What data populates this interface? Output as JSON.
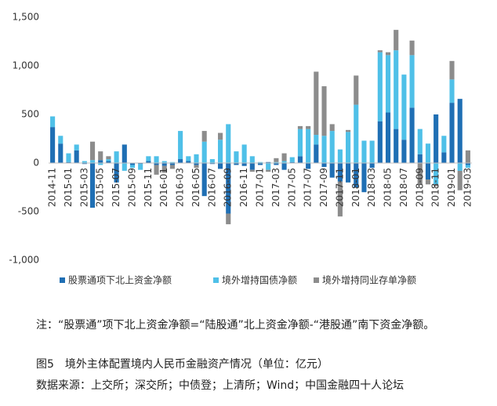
{
  "chart_data": {
    "type": "stacked_bar",
    "categories": [
      "2014-11",
      null,
      "2015-01",
      null,
      "2015-03",
      null,
      "2015-05",
      null,
      "2015-07",
      null,
      "2015-09",
      null,
      "2015-11",
      null,
      "2016-01",
      null,
      "2016-03",
      null,
      "2016-05",
      null,
      "2016-07",
      null,
      "2016-09",
      null,
      "2016-11",
      null,
      "2017-01",
      null,
      "2017-03",
      null,
      "2017-05",
      null,
      "2017-07",
      null,
      "2017-09",
      null,
      "2017-11",
      null,
      "2018-01",
      null,
      "2018-03",
      null,
      "2018-05",
      null,
      "2018-07",
      null,
      "2018-09",
      null,
      "2018-11",
      null,
      "2019-01",
      null,
      "2019-03"
    ],
    "series": [
      {
        "name": "股票通项下北上资金净额",
        "color": "#1f6fb4",
        "values": [
          370,
          200,
          10,
          130,
          -10,
          -460,
          30,
          20,
          -200,
          190,
          -20,
          -10,
          20,
          -20,
          -30,
          -20,
          40,
          20,
          -20,
          -340,
          -10,
          -60,
          -520,
          -20,
          -30,
          -70,
          -20,
          10,
          -20,
          -70,
          10,
          70,
          -60,
          190,
          -40,
          -150,
          -190,
          -200,
          -250,
          -300,
          -50,
          430,
          520,
          350,
          240,
          570,
          90,
          -170,
          500,
          110,
          620,
          660,
          -20
        ]
      },
      {
        "name": "境外增持国债净额",
        "color": "#4fc0e8",
        "values": [
          110,
          80,
          90,
          60,
          20,
          30,
          -20,
          20,
          120,
          -80,
          -30,
          -60,
          50,
          70,
          20,
          10,
          290,
          50,
          90,
          220,
          40,
          240,
          400,
          120,
          190,
          70,
          10,
          -70,
          10,
          20,
          50,
          280,
          350,
          100,
          280,
          330,
          140,
          320,
          600,
          230,
          230,
          710,
          590,
          810,
          670,
          540,
          260,
          200,
          -220,
          170,
          240,
          -80,
          -30
        ]
      },
      {
        "name": "境外增持同业存单净额",
        "color": "#8c8c8c",
        "values": [
          0,
          0,
          0,
          0,
          0,
          190,
          90,
          30,
          0,
          0,
          0,
          0,
          0,
          -100,
          -70,
          -40,
          0,
          0,
          -30,
          110,
          0,
          70,
          -110,
          0,
          0,
          -20,
          0,
          -20,
          40,
          80,
          0,
          30,
          30,
          650,
          510,
          70,
          -360,
          20,
          300,
          0,
          0,
          20,
          30,
          210,
          0,
          150,
          -220,
          -50,
          -20,
          0,
          190,
          -200,
          130
        ]
      }
    ],
    "ylim": [
      -1000,
      1500
    ],
    "yticks": [
      {
        "value": -1000,
        "label": "-1,000"
      },
      -500,
      0,
      500,
      {
        "value": 1000,
        "label": "1,000"
      },
      {
        "value": 1500,
        "label": "1,500"
      }
    ],
    "note": "注：“股票通”项下北上资金净额=“陆股通”北上资金净额-“港股通”南下资金净额。",
    "caption": "图5　境外主体配置境内人民币金融资产情况（单位：亿元）",
    "source": "数据来源：上交所；深交所；中债登；上清所；Wind；中国金融四十人论坛"
  }
}
